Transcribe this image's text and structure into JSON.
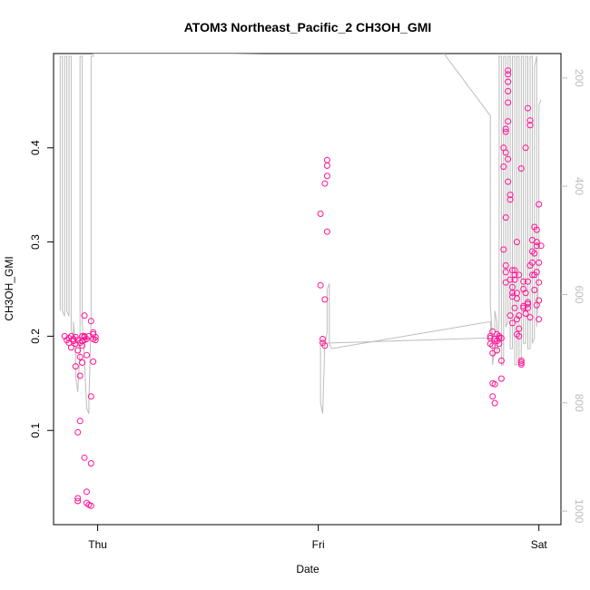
{
  "chart_data": {
    "type": "scatter",
    "title": "ATOM3 Northeast_Pacific_2 CH3OH_GMI",
    "xlabel": "Date",
    "ylabel": "CH3OH_GMI",
    "x_tick_labels": [
      "Thu",
      "Fri",
      "Sat"
    ],
    "x_ticks": [
      0,
      1,
      2
    ],
    "ylim": [
      0.0,
      0.5
    ],
    "y_ticks": [
      0.1,
      0.2,
      0.3,
      0.4
    ],
    "y_tick_labels": [
      "0.1",
      "0.2",
      "0.3",
      "0.4"
    ],
    "y2_ticks": [
      200,
      400,
      600,
      800,
      1000
    ],
    "y2_tick_labels": [
      "200",
      "400",
      "600",
      "800",
      "1000"
    ],
    "y2lim": [
      1025,
      155
    ],
    "y2_reversed": true,
    "grid": false,
    "colors": {
      "points": "#ff1493",
      "pressure": "#bdbdbd",
      "axis": "#000000",
      "axis2": "#bdbdbd"
    },
    "series": [
      {
        "marker": "circle",
        "points": [
          [
            -0.15,
            0.2
          ],
          [
            -0.14,
            0.196
          ],
          [
            -0.13,
            0.198
          ],
          [
            -0.13,
            0.193
          ],
          [
            -0.12,
            0.2
          ],
          [
            -0.12,
            0.188
          ],
          [
            -0.11,
            0.197
          ],
          [
            -0.11,
            0.195
          ],
          [
            -0.1,
            0.199
          ],
          [
            -0.1,
            0.192
          ],
          [
            -0.1,
            0.168
          ],
          [
            -0.09,
            0.196
          ],
          [
            -0.09,
            0.185
          ],
          [
            -0.09,
            0.098
          ],
          [
            -0.08,
            0.178
          ],
          [
            -0.08,
            0.193
          ],
          [
            -0.08,
            0.158
          ],
          [
            -0.08,
            0.11
          ],
          [
            -0.07,
            0.2
          ],
          [
            -0.07,
            0.195
          ],
          [
            -0.07,
            0.19
          ],
          [
            -0.07,
            0.172
          ],
          [
            -0.06,
            0.199
          ],
          [
            -0.06,
            0.196
          ],
          [
            -0.06,
            0.2
          ],
          [
            -0.06,
            0.222
          ],
          [
            -0.05,
            0.197
          ],
          [
            -0.05,
            0.18
          ],
          [
            -0.09,
            0.028
          ],
          [
            -0.09,
            0.025
          ],
          [
            -0.06,
            0.071
          ],
          [
            -0.05,
            0.035
          ],
          [
            -0.05,
            0.023
          ],
          [
            -0.04,
            0.021
          ],
          [
            -0.03,
            0.02
          ],
          [
            -0.03,
            0.065
          ],
          [
            -0.03,
            0.136
          ],
          [
            -0.03,
            0.216
          ],
          [
            -0.02,
            0.204
          ],
          [
            -0.02,
            0.173
          ],
          [
            -0.02,
            0.197
          ],
          [
            -0.02,
            0.202
          ],
          [
            -0.01,
            0.199
          ],
          [
            -0.01,
            0.196
          ],
          [
            -0.04,
            0.2
          ],
          [
            1.01,
            0.33
          ],
          [
            1.01,
            0.254
          ],
          [
            1.02,
            0.197
          ],
          [
            1.02,
            0.193
          ],
          [
            1.03,
            0.19
          ],
          [
            1.03,
            0.239
          ],
          [
            1.03,
            0.362
          ],
          [
            1.04,
            0.37
          ],
          [
            1.04,
            0.381
          ],
          [
            1.04,
            0.387
          ],
          [
            1.04,
            0.311
          ],
          [
            1.78,
            0.198
          ],
          [
            1.78,
            0.2
          ],
          [
            1.78,
            0.192
          ],
          [
            1.79,
            0.205
          ],
          [
            1.79,
            0.19
          ],
          [
            1.79,
            0.182
          ],
          [
            1.79,
            0.15
          ],
          [
            1.79,
            0.136
          ],
          [
            1.8,
            0.129
          ],
          [
            1.8,
            0.149
          ],
          [
            1.8,
            0.197
          ],
          [
            1.81,
            0.202
          ],
          [
            1.81,
            0.195
          ],
          [
            1.81,
            0.185
          ],
          [
            1.82,
            0.198
          ],
          [
            1.82,
            0.192
          ],
          [
            1.82,
            0.2
          ],
          [
            1.83,
            0.198
          ],
          [
            1.83,
            0.174
          ],
          [
            1.83,
            0.155
          ],
          [
            1.84,
            0.292
          ],
          [
            1.84,
            0.38
          ],
          [
            1.84,
            0.4
          ],
          [
            1.85,
            0.42
          ],
          [
            1.85,
            0.417
          ],
          [
            1.85,
            0.395
          ],
          [
            1.86,
            0.428
          ],
          [
            1.86,
            0.478
          ],
          [
            1.86,
            0.47
          ],
          [
            1.86,
            0.46
          ],
          [
            1.86,
            0.482
          ],
          [
            1.86,
            0.448
          ],
          [
            1.85,
            0.275
          ],
          [
            1.85,
            0.257
          ],
          [
            1.85,
            0.268
          ],
          [
            1.85,
            0.326
          ],
          [
            1.86,
            0.388
          ],
          [
            1.86,
            0.364
          ],
          [
            1.87,
            0.345
          ],
          [
            1.87,
            0.35
          ],
          [
            1.87,
            0.222
          ],
          [
            1.87,
            0.26
          ],
          [
            1.88,
            0.246
          ],
          [
            1.88,
            0.242
          ],
          [
            1.88,
            0.27
          ],
          [
            1.88,
            0.214
          ],
          [
            1.88,
            0.252
          ],
          [
            1.89,
            0.23
          ],
          [
            1.89,
            0.27
          ],
          [
            1.89,
            0.265
          ],
          [
            1.89,
            0.26
          ],
          [
            1.9,
            0.3
          ],
          [
            1.9,
            0.246
          ],
          [
            1.9,
            0.24
          ],
          [
            1.9,
            0.202
          ],
          [
            1.9,
            0.218
          ],
          [
            1.91,
            0.2
          ],
          [
            1.91,
            0.265
          ],
          [
            1.91,
            0.208
          ],
          [
            1.91,
            0.222
          ],
          [
            1.92,
            0.378
          ],
          [
            1.92,
            0.172
          ],
          [
            1.92,
            0.17
          ],
          [
            1.92,
            0.174
          ],
          [
            1.93,
            0.258
          ],
          [
            1.93,
            0.232
          ],
          [
            1.93,
            0.25
          ],
          [
            1.93,
            0.23
          ],
          [
            1.94,
            0.246
          ],
          [
            1.94,
            0.4
          ],
          [
            1.94,
            0.224
          ],
          [
            1.95,
            0.23
          ],
          [
            1.95,
            0.258
          ],
          [
            1.95,
            0.236
          ],
          [
            1.95,
            0.234
          ],
          [
            1.95,
            0.442
          ],
          [
            1.96,
            0.429
          ],
          [
            1.96,
            0.424
          ],
          [
            1.96,
            0.22
          ],
          [
            1.96,
            0.275
          ],
          [
            1.97,
            0.29
          ],
          [
            1.97,
            0.278
          ],
          [
            1.97,
            0.302
          ],
          [
            1.97,
            0.265
          ],
          [
            1.98,
            0.265
          ],
          [
            1.98,
            0.316
          ],
          [
            1.98,
            0.288
          ],
          [
            1.98,
            0.249
          ],
          [
            1.99,
            0.268
          ],
          [
            1.99,
            0.3
          ],
          [
            1.99,
            0.313
          ],
          [
            1.99,
            0.296
          ],
          [
            2.0,
            0.218
          ],
          [
            2.0,
            0.257
          ],
          [
            2.0,
            0.34
          ],
          [
            2.0,
            0.278
          ],
          [
            2.01,
            0.296
          ],
          [
            2.0,
            0.238
          ],
          [
            1.99,
            0.233
          ]
        ]
      },
      {
        "axis": "right",
        "style": "line",
        "points": [
          [
            -0.17,
            630
          ],
          [
            -0.17,
            160
          ],
          [
            -0.16,
            160
          ],
          [
            -0.16,
            630
          ],
          [
            -0.15,
            640
          ],
          [
            -0.15,
            160
          ],
          [
            -0.14,
            160
          ],
          [
            -0.14,
            630
          ],
          [
            -0.13,
            640
          ],
          [
            -0.13,
            160
          ],
          [
            -0.12,
            160
          ],
          [
            -0.12,
            665
          ],
          [
            -0.11,
            680
          ],
          [
            -0.11,
            650
          ],
          [
            -0.1,
            700
          ],
          [
            -0.1,
            750
          ],
          [
            -0.09,
            780
          ],
          [
            -0.08,
            700
          ],
          [
            -0.08,
            160
          ],
          [
            -0.07,
            160
          ],
          [
            -0.07,
            650
          ],
          [
            -0.06,
            720
          ],
          [
            -0.05,
            810
          ],
          [
            -0.04,
            820
          ],
          [
            -0.04,
            800
          ],
          [
            -0.03,
            650
          ],
          [
            -0.03,
            160
          ],
          [
            -0.02,
            160
          ],
          [
            -0.02,
            155
          ],
          [
            0.6,
            155
          ],
          [
            1.56,
            150
          ],
          [
            1.78,
            270
          ],
          [
            1.78,
            330
          ],
          [
            1.78,
            620
          ],
          [
            1.79,
            680
          ],
          [
            1.79,
            680
          ],
          [
            1.01,
            690
          ],
          [
            1.01,
            800
          ],
          [
            1.02,
            820
          ],
          [
            1.02,
            820
          ],
          [
            1.03,
            690
          ],
          [
            1.04,
            670
          ],
          [
            1.04,
            590
          ],
          [
            1.05,
            580
          ],
          [
            1.05,
            690
          ],
          [
            1.06,
            700
          ],
          [
            1.78,
            650
          ],
          [
            1.79,
            700
          ],
          [
            1.79,
            730
          ],
          [
            1.8,
            700
          ],
          [
            1.8,
            630
          ],
          [
            1.81,
            650
          ],
          [
            1.81,
            710
          ],
          [
            1.82,
            650
          ],
          [
            1.82,
            160
          ],
          [
            1.83,
            160
          ],
          [
            1.83,
            730
          ],
          [
            1.84,
            730
          ],
          [
            1.84,
            160
          ],
          [
            1.85,
            160
          ],
          [
            1.85,
            660
          ],
          [
            1.86,
            650
          ],
          [
            1.86,
            160
          ],
          [
            1.87,
            160
          ],
          [
            1.87,
            700
          ],
          [
            1.88,
            700
          ],
          [
            1.88,
            160
          ],
          [
            1.89,
            160
          ],
          [
            1.89,
            730
          ],
          [
            1.9,
            730
          ],
          [
            1.9,
            160
          ],
          [
            1.91,
            160
          ],
          [
            1.91,
            720
          ],
          [
            1.92,
            720
          ],
          [
            1.92,
            160
          ],
          [
            1.93,
            160
          ],
          [
            1.93,
            690
          ],
          [
            1.94,
            690
          ],
          [
            1.94,
            160
          ],
          [
            1.95,
            160
          ],
          [
            1.95,
            700
          ],
          [
            1.96,
            700
          ],
          [
            1.96,
            160
          ],
          [
            1.97,
            160
          ],
          [
            1.97,
            690
          ],
          [
            1.98,
            680
          ],
          [
            1.98,
            180
          ],
          [
            1.99,
            160
          ],
          [
            1.99,
            660
          ],
          [
            2.0,
            560
          ],
          [
            2.0,
            250
          ],
          [
            2.01,
            240
          ]
        ]
      }
    ]
  }
}
